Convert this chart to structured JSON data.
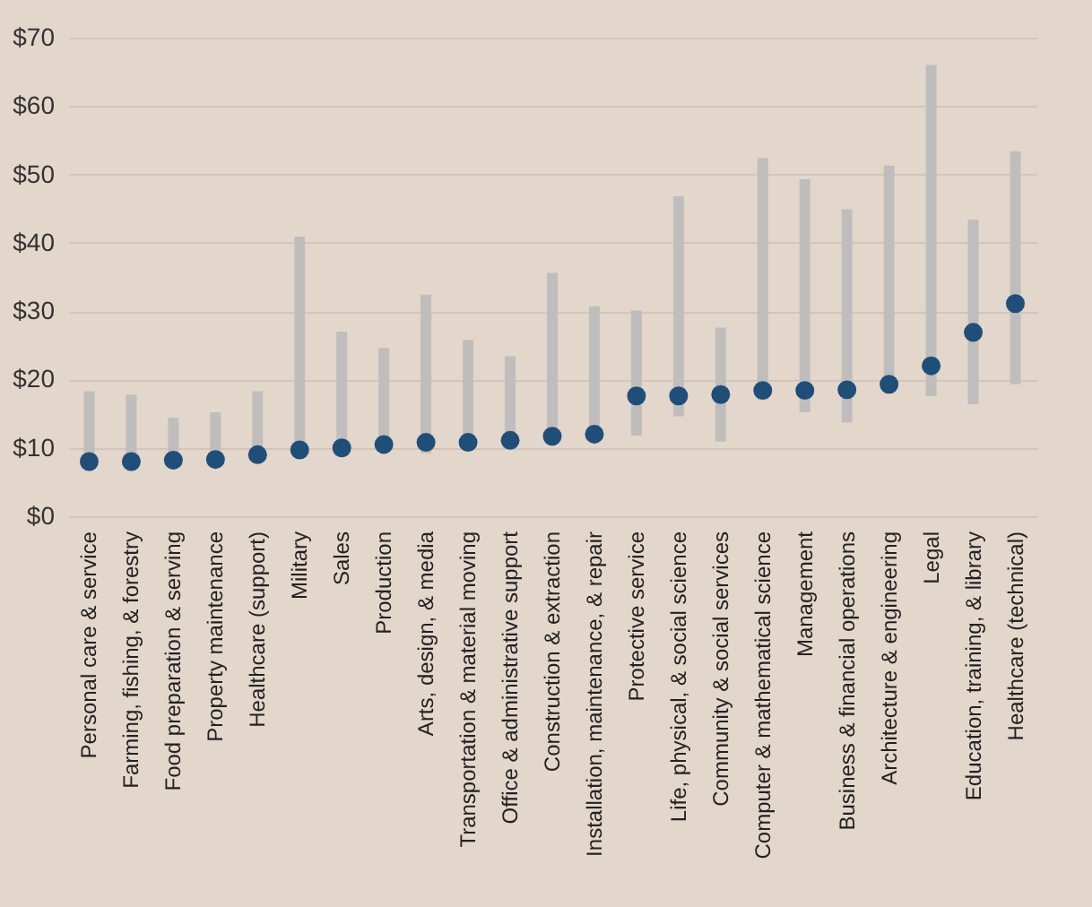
{
  "chart_data": {
    "type": "bar",
    "categories": [
      "Personal care & service",
      "Farming, fishing, & forestry",
      "Food preparation & serving",
      "Property maintenance",
      "Healthcare (support)",
      "Military",
      "Sales",
      "Production",
      "Arts, design, & media",
      "Transportation & material moving",
      "Office & administrative support",
      "Construction & extraction",
      "Installation, maintenance, & repair",
      "Protective service",
      "Life, physical, & social science",
      "Community & social services",
      "Computer & mathematical science",
      "Management",
      "Business & financial operations",
      "Architecture & engineering",
      "Legal",
      "Education, training, & library",
      "Healthcare (technical)"
    ],
    "ylim": [
      0,
      70
    ],
    "yticks": [
      {
        "value": 0,
        "label": "$0"
      },
      {
        "value": 10,
        "label": "$10"
      },
      {
        "value": 20,
        "label": "$20"
      },
      {
        "value": 30,
        "label": "$30"
      },
      {
        "value": 40,
        "label": "$40"
      },
      {
        "value": 50,
        "label": "$50"
      },
      {
        "value": 60,
        "label": "$60"
      },
      {
        "value": 70,
        "label": "$70"
      }
    ],
    "grid": "y",
    "series": [
      {
        "type": "bar",
        "color": "#c0bebc",
        "base": [
          7.5,
          7.5,
          7.8,
          7.8,
          8.2,
          9,
          9.2,
          9.5,
          9.2,
          9.8,
          10,
          10.5,
          11,
          11.8,
          14.6,
          10.9,
          17,
          15.2,
          13.7,
          18,
          17.6,
          16.4,
          19.3
        ],
        "values": [
          10.8,
          10.3,
          6.6,
          7.4,
          10.1,
          31.9,
          17.8,
          15.1,
          23.2,
          16,
          13.4,
          25.1,
          19.7,
          18.3,
          32.2,
          16.7,
          35.4,
          34.1,
          31.2,
          33.3,
          48.4,
          27,
          34.1
        ]
      },
      {
        "type": "scatter",
        "color": "#1f4e79",
        "marker": "circle",
        "x": [
          "Personal care & service",
          "Farming, fishing, & forestry",
          "Food preparation & serving",
          "Property maintenance",
          "Healthcare (support)",
          "Military",
          "Sales",
          "Production",
          "Arts, design, & media",
          "Transportation & material moving",
          "Office & administrative support",
          "Construction & extraction",
          "Installation, maintenance, & repair",
          "Protective service",
          "Life, physical, & social science",
          "Community & social services",
          "Computer & mathematical science",
          "Management",
          "Business & financial operations",
          "Architecture & engineering",
          "Legal",
          "Education, training, & library",
          "Healthcare (technical)"
        ],
        "values": [
          8.0,
          8.0,
          8.2,
          8.3,
          9.0,
          9.7,
          10.0,
          10.5,
          10.8,
          10.8,
          11.1,
          11.7,
          12.0,
          17.6,
          17.6,
          17.8,
          18.4,
          18.4,
          18.5,
          19.3,
          22.0,
          26.9,
          31.1
        ]
      }
    ]
  }
}
